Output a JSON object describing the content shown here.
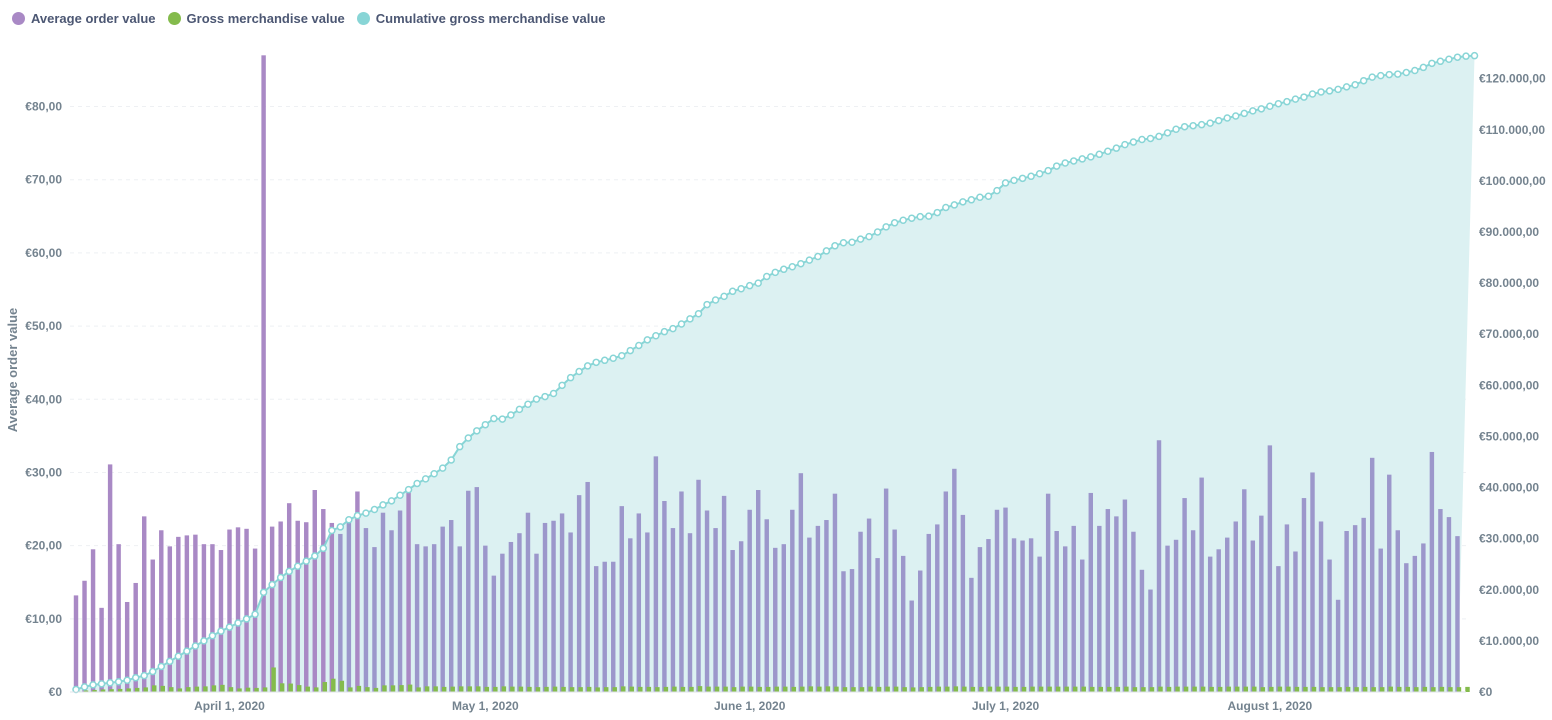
{
  "legend": {
    "aov": "Average order value",
    "gmv": "Gross merchandise value",
    "cum": "Cumulative gross merchandise value"
  },
  "colors": {
    "aov": "#a989c5",
    "aov_overlay": "#9c97cb",
    "gmv": "#84bb4c",
    "cum": "#88d5d6",
    "cum_fill": "#dcf1f2",
    "grid": "#eef0f3"
  },
  "chart_data": {
    "type": "bar",
    "x_start": "2020-03-14",
    "ylabel": "Average order value",
    "ylim": [
      0,
      88
    ],
    "y2lim": [
      0,
      126000
    ],
    "y_ticks": [
      "€0",
      "€10,00",
      "€20,00",
      "€30,00",
      "€40,00",
      "€50,00",
      "€60,00",
      "€70,00",
      "€80,00"
    ],
    "y2_ticks": [
      "€0",
      "€10.000,00",
      "€20.000,00",
      "€30.000,00",
      "€40.000,00",
      "€50.000,00",
      "€60.000,00",
      "€70.000,00",
      "€80.000,00",
      "€90.000,00",
      "€100.000,00",
      "€110.000,00",
      "€120.000,00"
    ],
    "x_ticks": [
      "April 1, 2020",
      "May 1, 2020",
      "June 1, 2020",
      "July 1, 2020",
      "August 1, 2020"
    ],
    "grid": true,
    "legend_position": "top-left",
    "series": [
      {
        "name": "Average order value",
        "type": "bar",
        "axis": "left",
        "values": [
          13.2,
          15.2,
          19.5,
          11.5,
          31.1,
          20.2,
          12.3,
          14.9,
          24.0,
          18.1,
          22.1,
          19.9,
          21.2,
          21.4,
          21.5,
          20.2,
          20.2,
          19.4,
          22.2,
          22.5,
          22.3,
          19.6,
          87.0,
          22.6,
          23.3,
          25.8,
          23.4,
          23.2,
          27.6,
          25.0,
          23.1,
          21.6,
          23.3,
          27.4,
          22.4,
          19.8,
          24.5,
          22.1,
          24.8,
          27.9,
          20.2,
          19.9,
          20.2,
          22.6,
          23.5,
          19.9,
          27.5,
          28.0,
          20.0,
          15.9,
          18.9,
          20.5,
          21.7,
          24.5,
          18.9,
          23.1,
          23.4,
          24.4,
          21.8,
          26.9,
          28.7,
          17.2,
          17.8,
          17.8,
          25.4,
          21.0,
          24.4,
          21.8,
          32.2,
          26.1,
          22.4,
          27.4,
          21.7,
          29.0,
          24.8,
          22.4,
          26.8,
          19.4,
          20.6,
          24.9,
          27.6,
          23.6,
          19.7,
          20.2,
          24.9,
          29.9,
          21.1,
          22.7,
          23.5,
          27.1,
          16.5,
          16.8,
          21.9,
          23.7,
          18.3,
          27.8,
          22.2,
          18.6,
          12.5,
          16.6,
          21.6,
          22.9,
          27.4,
          30.5,
          24.2,
          15.6,
          19.8,
          20.9,
          24.9,
          25.2,
          21.0,
          20.7,
          21.0,
          18.5,
          27.1,
          22.0,
          19.9,
          22.7,
          18.1,
          27.2,
          22.7,
          25.0,
          24.0,
          26.3,
          21.9,
          16.7,
          14.0,
          34.4,
          20.0,
          20.8,
          26.5,
          22.1,
          29.3,
          18.5,
          19.5,
          21.1,
          23.3,
          27.7,
          20.7,
          24.1,
          33.7,
          17.2,
          22.9,
          19.2,
          26.5,
          30.0,
          23.3,
          18.1,
          12.6,
          22.0,
          22.8,
          23.8,
          32.0,
          19.6,
          29.7,
          22.1,
          17.6,
          18.6,
          20.3,
          32.8,
          25.0,
          23.9,
          21.3
        ]
      },
      {
        "name": "Gross merchandise value",
        "type": "bar",
        "axis": "right",
        "values": [
          130,
          300,
          400,
          500,
          550,
          600,
          700,
          800,
          900,
          1300,
          1200,
          950,
          700,
          950,
          1050,
          1100,
          1300,
          1400,
          950,
          700,
          850,
          800,
          900,
          4800,
          1700,
          1650,
          1350,
          1050,
          900,
          1950,
          2600,
          2200,
          900,
          1200,
          950,
          800,
          1300,
          1300,
          1350,
          1450,
          900,
          1100,
          1100,
          1000,
          1050,
          1100,
          1100,
          1100,
          1000,
          1000,
          1100,
          1050,
          1050,
          1000,
          950,
          1000,
          1050,
          1000,
          950,
          950,
          1000,
          900,
          950,
          950,
          1100,
          1050,
          1000,
          1000,
          950,
          1000,
          1050,
          1000,
          1000,
          1150,
          1050,
          1050,
          1050,
          950,
          1050,
          1050,
          1000,
          1000,
          1050,
          1050,
          1000,
          1050,
          1100,
          1050,
          1100,
          1050,
          950,
          950,
          950,
          1050,
          1000,
          1050,
          1050,
          950,
          900,
          950,
          1000,
          1050,
          1050,
          1100,
          1050,
          1000,
          1000,
          1050,
          1050,
          1050,
          1000,
          1000,
          1050,
          1050,
          1050,
          1050,
          1050,
          1050,
          1050,
          1000,
          1000,
          1000,
          1000,
          1050,
          950,
          950,
          950,
          1050,
          1000,
          1050,
          1050,
          1050,
          1050,
          1000,
          1000,
          1050,
          1050,
          1050,
          1050,
          950,
          1000,
          1050,
          1050,
          1000,
          1000,
          1000,
          950,
          950,
          950,
          1000,
          950,
          1000,
          950,
          950,
          1050,
          1000,
          1000,
          950,
          1000,
          950,
          1000,
          950,
          950,
          1000
        ]
      },
      {
        "name": "Cumulative gross merchandise value",
        "type": "area",
        "axis": "right",
        "values": [
          500,
          1000,
          1400,
          1600,
          1800,
          2000,
          2300,
          2800,
          3200,
          4000,
          5000,
          6000,
          7000,
          8000,
          9000,
          10000,
          11000,
          11900,
          12700,
          13500,
          14300,
          15200,
          19500,
          21000,
          22400,
          23600,
          24600,
          25600,
          26600,
          28100,
          31600,
          32300,
          33700,
          34500,
          35000,
          35700,
          36600,
          37400,
          38500,
          39600,
          40800,
          41700,
          42700,
          43800,
          45400,
          48000,
          49700,
          51100,
          52300,
          53500,
          53400,
          54200,
          55300,
          56300,
          57300,
          57800,
          58400,
          60000,
          61500,
          62700,
          63800,
          64500,
          64900,
          65300,
          65800,
          66800,
          67800,
          68900,
          69700,
          70500,
          71100,
          72000,
          73000,
          74000,
          75800,
          76700,
          77400,
          78400,
          78900,
          79500,
          80000,
          81300,
          82100,
          82700,
          83200,
          83800,
          84500,
          85200,
          86300,
          87300,
          87900,
          88000,
          88600,
          89100,
          90000,
          91000,
          91800,
          92300,
          92700,
          93000,
          93100,
          93800,
          94800,
          95300,
          95900,
          96300,
          96800,
          97000,
          98100,
          99600,
          100100,
          100500,
          100900,
          101400,
          102000,
          102900,
          103500,
          103900,
          104300,
          104700,
          105200,
          105800,
          106400,
          107100,
          107600,
          108100,
          108300,
          108700,
          109400,
          110100,
          110600,
          110800,
          111000,
          111300,
          111800,
          112300,
          112700,
          113200,
          113700,
          114100,
          114600,
          115100,
          115500,
          116000,
          116400,
          117000,
          117400,
          117600,
          117900,
          118400,
          118800,
          119600,
          120300,
          120600,
          120800,
          120900,
          121200,
          121600,
          122200,
          123000,
          123400,
          123800,
          124200,
          124400,
          124500
        ]
      }
    ]
  }
}
